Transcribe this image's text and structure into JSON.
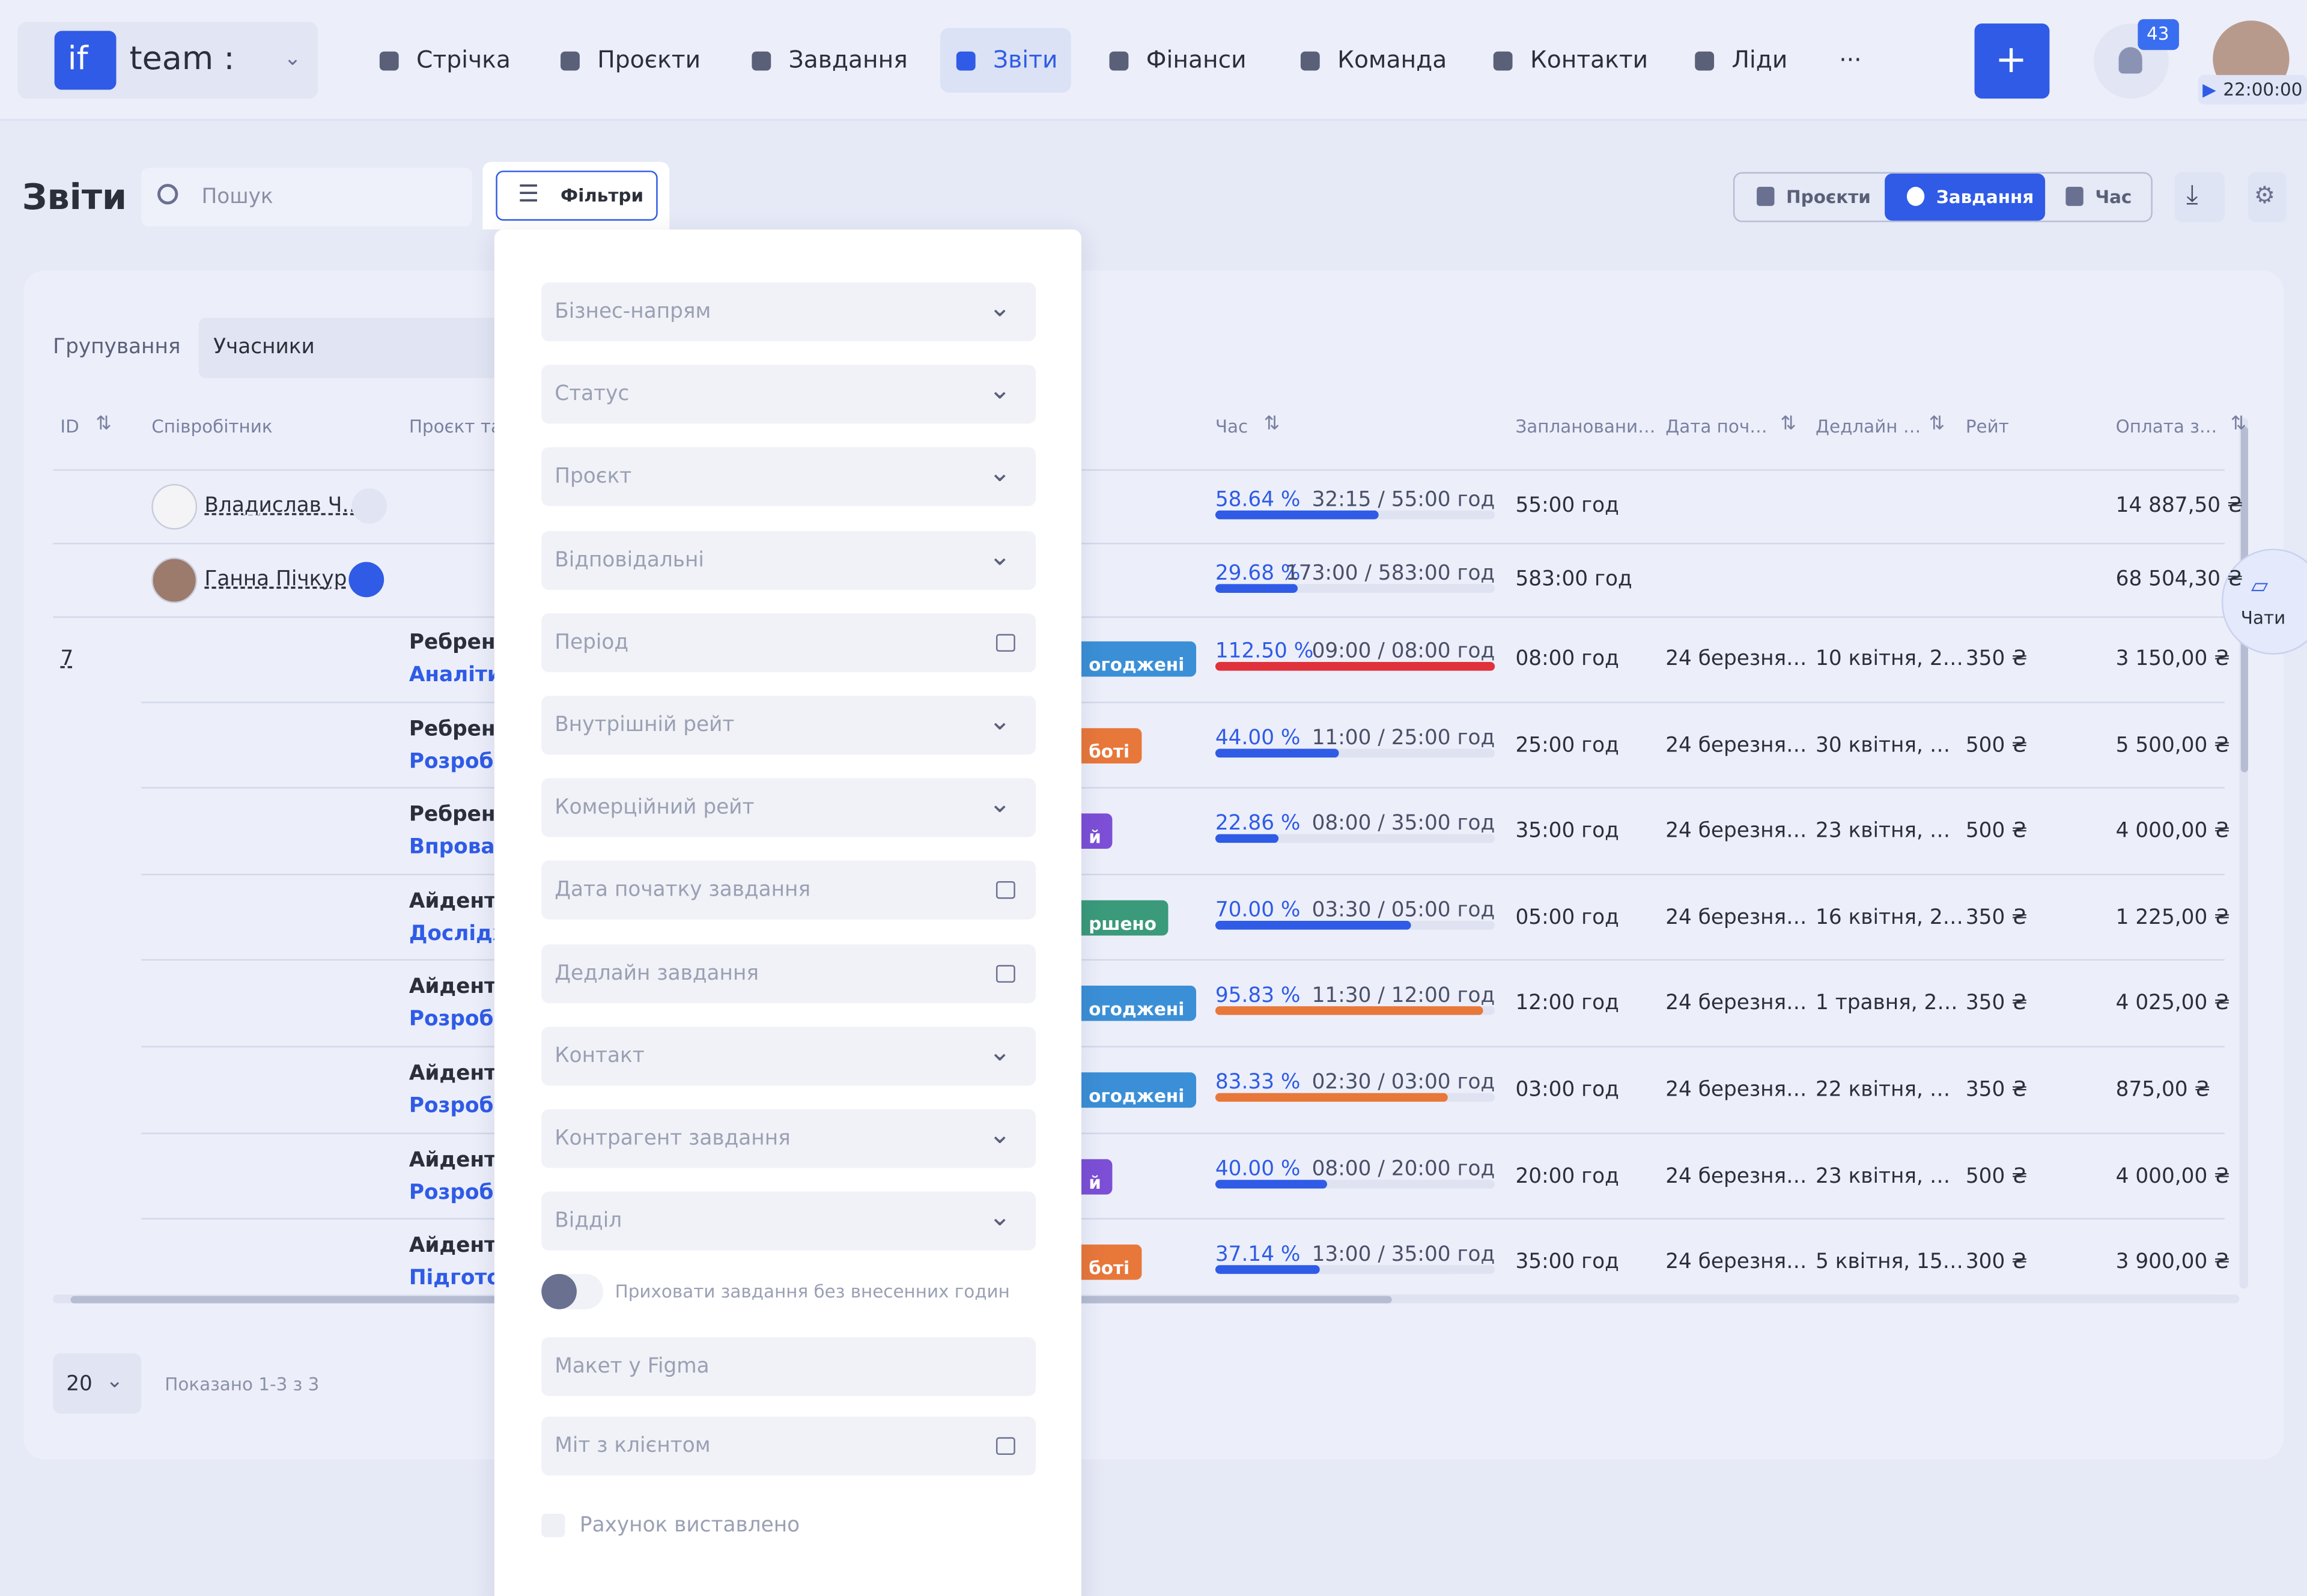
{
  "nav": {
    "logo": "if",
    "workspace": "team :",
    "items": [
      "Стрічка",
      "Проєкти",
      "Завдання",
      "Звіти",
      "Фінанси",
      "Команда",
      "Контакти",
      "Ліди",
      "···"
    ],
    "active": 3,
    "badge": "43",
    "timer": "22:00:00"
  },
  "page": {
    "title": "Звіти",
    "search": "Пошук",
    "filters": "Фільтри",
    "views": [
      "Проєкти",
      "Завдання",
      "Час"
    ],
    "active_view": 1,
    "grouping_label": "Групування",
    "grouping_value": "Учасники",
    "chat": "Чати"
  },
  "table": {
    "columns": [
      "ID",
      "Співробітник",
      "Проєкт та",
      "Час",
      "Заплановани…",
      "Дата поч…",
      "Дедлайн …",
      "Рейт",
      "Оплата з…"
    ],
    "groups": [
      {
        "name": "Владислав Ч…",
        "progress": 58.64,
        "progress_label": "58.64 %",
        "time": "32:15 / 55:00 год",
        "planned": "55:00 год",
        "pay": "14 887,50 ₴",
        "bar_color": "#2f5be6"
      },
      {
        "name": "Ганна Пічкур",
        "progress": 29.68,
        "progress_label": "29.68 %",
        "time": "173:00 / 583:00 год",
        "planned": "583:00 год",
        "pay": "68 504,30 ₴",
        "bar_color": "#2f5be6"
      }
    ],
    "rows": [
      {
        "id": "7",
        "project": "Ребренд",
        "task": "Аналітик",
        "status": "огоджені",
        "status_color": "#3b8fd6",
        "progress": 112.5,
        "progress_label": "112.50 %",
        "time": "09:00 / 08:00 год",
        "bar_color": "#e0323c",
        "planned": "08:00 год",
        "start": "24 березня…",
        "deadline": "10 квітня, 2…",
        "rate": "350 ₴",
        "pay": "3 150,00 ₴"
      },
      {
        "project": "Ребренд",
        "task": "Розробк",
        "status": "боті",
        "status_color": "#e8773a",
        "progress": 44,
        "progress_label": "44.00 %",
        "time": "11:00 / 25:00 год",
        "bar_color": "#2f5be6",
        "planned": "25:00 год",
        "start": "24 березня…",
        "deadline": "30 квітня, …",
        "rate": "500 ₴",
        "pay": "5 500,00 ₴"
      },
      {
        "project": "Ребренд",
        "task": "Впровад",
        "status": "й",
        "status_color": "#7c4fd6",
        "progress": 22.86,
        "progress_label": "22.86 %",
        "time": "08:00 / 35:00 год",
        "bar_color": "#2f5be6",
        "planned": "35:00 год",
        "start": "24 березня…",
        "deadline": "23 квітня, …",
        "rate": "500 ₴",
        "pay": "4 000,00 ₴"
      },
      {
        "project": "Айденти",
        "task": "Дослідж",
        "status": "ршено",
        "status_color": "#3a9a7a",
        "progress": 70,
        "progress_label": "70.00 %",
        "time": "03:30 / 05:00 год",
        "bar_color": "#2f5be6",
        "planned": "05:00 год",
        "start": "24 березня…",
        "deadline": "16 квітня, 2…",
        "rate": "350 ₴",
        "pay": "1 225,00 ₴"
      },
      {
        "project": "Айденти",
        "task": "Розробк",
        "status": "огоджені",
        "status_color": "#3b8fd6",
        "progress": 95.83,
        "progress_label": "95.83 %",
        "time": "11:30 / 12:00 год",
        "bar_color": "#e8773a",
        "planned": "12:00 год",
        "start": "24 березня…",
        "deadline": "1 травня, 2…",
        "rate": "350 ₴",
        "pay": "4 025,00 ₴"
      },
      {
        "project": "Айденти",
        "task": "Розробк",
        "status": "огоджені",
        "status_color": "#3b8fd6",
        "progress": 83.33,
        "progress_label": "83.33 %",
        "time": "02:30 / 03:00 год",
        "bar_color": "#e8773a",
        "planned": "03:00 год",
        "start": "24 березня…",
        "deadline": "22 квітня, …",
        "rate": "350 ₴",
        "pay": "875,00 ₴"
      },
      {
        "project": "Айденти",
        "task": "Розробк",
        "status": "й",
        "status_color": "#7c4fd6",
        "progress": 40,
        "progress_label": "40.00 %",
        "time": "08:00 / 20:00 год",
        "bar_color": "#2f5be6",
        "planned": "20:00 год",
        "start": "24 березня…",
        "deadline": "23 квітня, …",
        "rate": "500 ₴",
        "pay": "4 000,00 ₴"
      },
      {
        "project": "Айденти",
        "task": "Підготов",
        "status": "боті",
        "status_color": "#e8773a",
        "progress": 37.14,
        "progress_label": "37.14 %",
        "time": "13:00 / 35:00 год",
        "bar_color": "#2f5be6",
        "planned": "35:00 год",
        "start": "24 березня…",
        "deadline": "5 квітня, 15…",
        "rate": "300 ₴",
        "pay": "3 900,00 ₴"
      }
    ]
  },
  "filters": {
    "fields": [
      {
        "label": "Бізнес-напрям",
        "kind": "select"
      },
      {
        "label": "Статус",
        "kind": "select"
      },
      {
        "label": "Проєкт",
        "kind": "select"
      },
      {
        "label": "Відповідальні",
        "kind": "select"
      },
      {
        "label": "Період",
        "kind": "date"
      },
      {
        "label": "Внутрішній рейт",
        "kind": "select"
      },
      {
        "label": "Комерційний рейт",
        "kind": "select"
      },
      {
        "label": "Дата початку завдання",
        "kind": "date"
      },
      {
        "label": "Дедлайн завдання",
        "kind": "date"
      },
      {
        "label": "Контакт",
        "kind": "select"
      },
      {
        "label": "Контрагент завдання",
        "kind": "select"
      },
      {
        "label": "Відділ",
        "kind": "select"
      }
    ],
    "toggle": "Приховати завдання без внесенних годин",
    "extra_fields": [
      {
        "label": "Макет у Figma",
        "kind": "text"
      },
      {
        "label": "Міт з клієнтом",
        "kind": "date"
      }
    ],
    "checkbox": "Рахунок виставлено"
  },
  "footer": {
    "page_size": "20",
    "info": "Показано 1-3 з 3"
  }
}
